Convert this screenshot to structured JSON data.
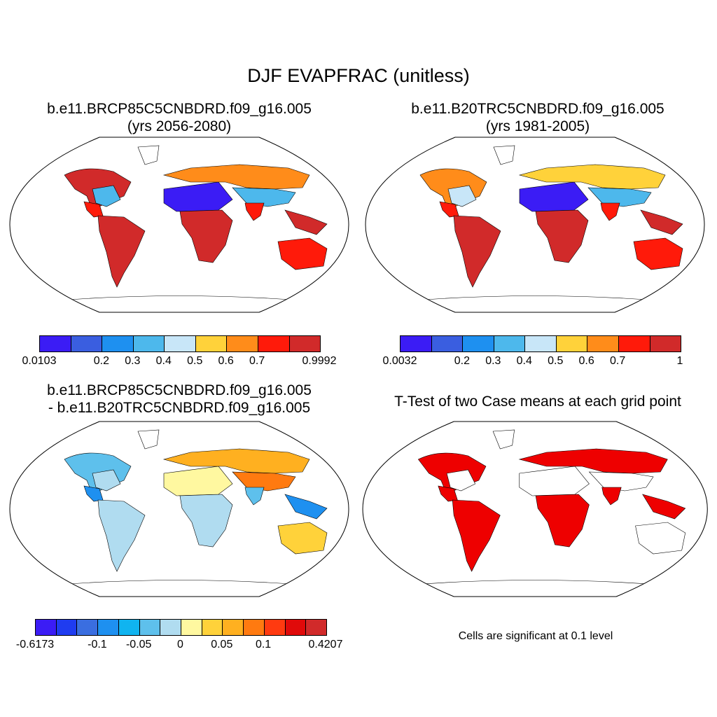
{
  "title": "DJF EVAPFRAC (unitless)",
  "panels": [
    {
      "id": "p1",
      "title_line1": "b.e11.BRCP85C5CNBDRD.f09_g16.005",
      "title_line2": "(yrs 2056-2080)",
      "colorbar": {
        "colors": [
          "#3b1cf5",
          "#3a5ee0",
          "#1e90f0",
          "#4db8ec",
          "#c8e6f8",
          "#ffd23a",
          "#ff8c1a",
          "#ff1a0a",
          "#d12a2a"
        ],
        "tick_labels": [
          "0.0103",
          "0.2",
          "0.3",
          "0.4",
          "0.5",
          "0.6",
          "0.7",
          "0.9992"
        ],
        "tick_boundaries": [
          0,
          2,
          3,
          4,
          5,
          6,
          7,
          9
        ]
      }
    },
    {
      "id": "p2",
      "title_line1": "b.e11.B20TRC5CNBDRD.f09_g16.005",
      "title_line2": "(yrs 1981-2005)",
      "colorbar": {
        "colors": [
          "#3b1cf5",
          "#3a5ee0",
          "#1e90f0",
          "#4db8ec",
          "#c8e6f8",
          "#ffd23a",
          "#ff8c1a",
          "#ff1a0a",
          "#d12a2a"
        ],
        "tick_labels": [
          "0.0032",
          "0.2",
          "0.3",
          "0.4",
          "0.5",
          "0.6",
          "0.7",
          "1"
        ],
        "tick_boundaries": [
          0,
          2,
          3,
          4,
          5,
          6,
          7,
          9
        ]
      }
    },
    {
      "id": "p3",
      "title_line1": "b.e11.BRCP85C5CNBDRD.f09_g16.005",
      "title_line2": "- b.e11.B20TRC5CNBDRD.f09_g16.005",
      "colorbar": {
        "colors": [
          "#3b1cf5",
          "#1f3cf0",
          "#3a6ee0",
          "#1e90f0",
          "#10b4f0",
          "#5ec0ec",
          "#b0dcf0",
          "#fff8a0",
          "#ffd23a",
          "#ffb020",
          "#ff7a10",
          "#ff3a10",
          "#e00a0a",
          "#d12a2a"
        ],
        "tick_labels": [
          "-0.6173",
          "-0.1",
          "-0.05",
          "0",
          "0.05",
          "0.1",
          "0.4207"
        ],
        "tick_boundaries": [
          0,
          3,
          5,
          7,
          9,
          11,
          14
        ]
      }
    },
    {
      "id": "p4",
      "title_line1": "T-Test of two Case means at each grid point",
      "significance_color": "#ee0000",
      "note": "Cells are significant at 0.1 level"
    }
  ]
}
